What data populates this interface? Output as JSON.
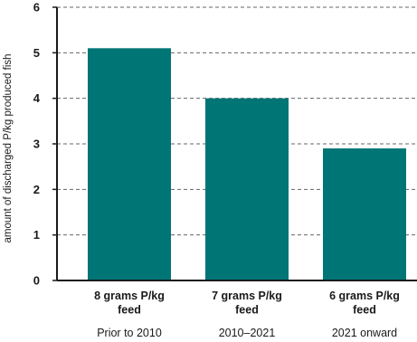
{
  "chart_data": {
    "type": "bar",
    "ylabel": "amount of discharged P/kg produced fish",
    "ylim": [
      0,
      6
    ],
    "yticks": [
      "0",
      "1",
      "2",
      "3",
      "4",
      "5",
      "6"
    ],
    "grid": true,
    "categories": [
      {
        "label_lines": [
          "8 grams P/kg",
          "feed"
        ],
        "period": "Prior to 2010"
      },
      {
        "label_lines": [
          "7 grams P/kg",
          "feed"
        ],
        "period": "2010–2021"
      },
      {
        "label_lines": [
          "6 grams P/kg",
          "feed"
        ],
        "period": "2021 onward"
      }
    ],
    "values": [
      5.1,
      4.0,
      2.9
    ],
    "colors": {
      "bar": "#007575",
      "grid": "#666666",
      "axis": "#1a1a1a"
    }
  }
}
